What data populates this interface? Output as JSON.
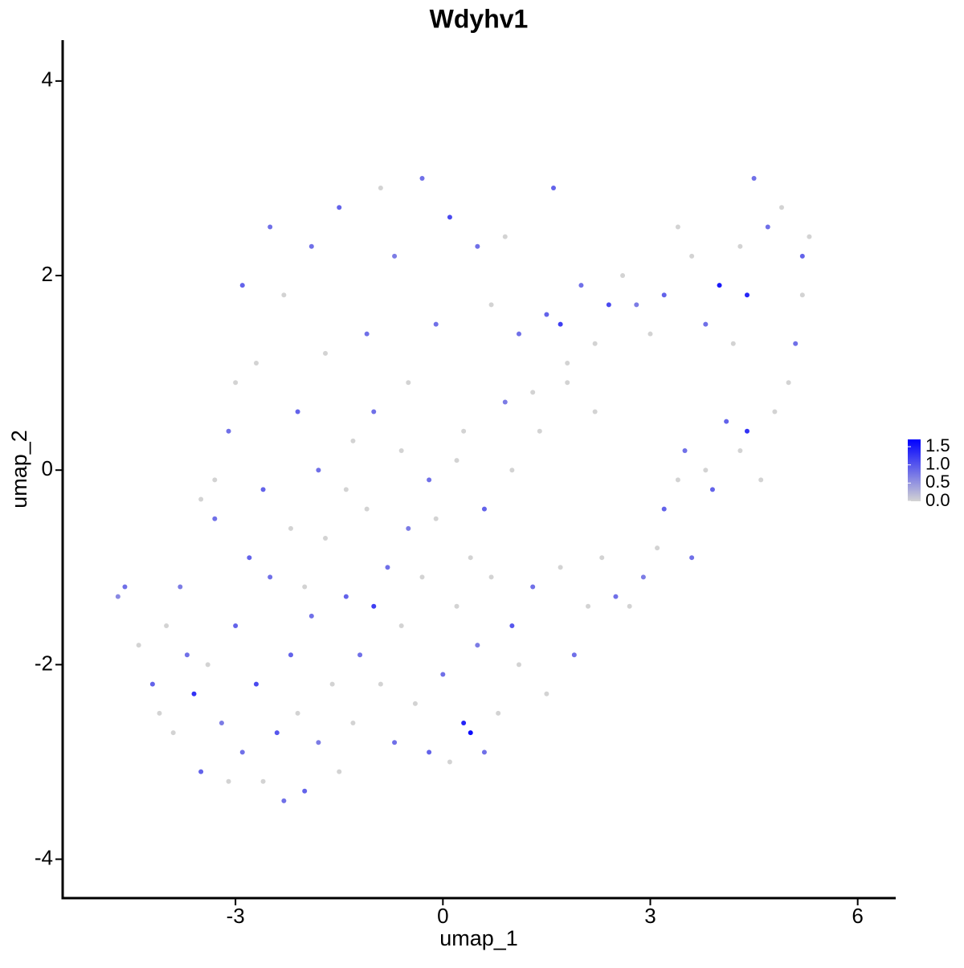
{
  "chart_data": {
    "type": "scatter",
    "title": "Wdyhv1",
    "x_label": "umap_1",
    "y_label": "umap_2",
    "x": [
      -4.7,
      -4.6,
      -4.4,
      -4.2,
      -4.0,
      -3.9,
      -3.8,
      -3.6,
      -3.5,
      -3.4,
      -3.3,
      -3.2,
      -3.1,
      -3.0,
      -2.9,
      -2.8,
      -2.7,
      -2.6,
      -2.5,
      -2.4,
      -2.3,
      -2.2,
      -2.1,
      -2.0,
      -1.9,
      -1.8,
      -1.7,
      -1.6,
      -1.5,
      -1.4,
      -1.3,
      -1.2,
      -1.1,
      -1.0,
      -0.9,
      -0.8,
      -0.7,
      -0.6,
      -0.5,
      -0.4,
      -0.3,
      -0.2,
      -0.1,
      0,
      0.1,
      0.2,
      0.3,
      0.4,
      0.5,
      0.6,
      0.7,
      0.8,
      1.0,
      1.1,
      1.3,
      1.5,
      1.7,
      1.9,
      2.1,
      2.3,
      2.5,
      2.7,
      2.9,
      3.1,
      3.2,
      3.4,
      3.5,
      3.6,
      3.8,
      3.9,
      4.1,
      4.3,
      4.4,
      4.6,
      4.8,
      5.0,
      5.1,
      5.2,
      5.3,
      5.2,
      4.9,
      4.7,
      4.5,
      4.3,
      4.4,
      4.2,
      4.0,
      3.8,
      3.6,
      3.4,
      3.2,
      3.0,
      2.8,
      2.6,
      2.4,
      2.2,
      2.0,
      1.8,
      1.7,
      1.5,
      1.3,
      1.1,
      0.9,
      0.7,
      0.5,
      0.3,
      0.1,
      -0.1,
      -0.3,
      -0.5,
      -0.7,
      -0.9,
      -1.1,
      -1.3,
      -1.5,
      -1.7,
      -1.9,
      -2.1,
      -2.3,
      -2.5,
      -2.7,
      -2.9,
      -3.1,
      -3.3,
      -3.5,
      -3.0,
      -2.6,
      -2.2,
      -1.8,
      -1.4,
      -1.0,
      -0.6,
      -0.2,
      0.2,
      0.6,
      1.0,
      1.4,
      1.8,
      2.2,
      0.4,
      -2.0,
      -3.7,
      -4.1,
      1.6,
      0.9
    ],
    "y": [
      -1.3,
      -1.2,
      -1.8,
      -2.2,
      -1.6,
      -2.7,
      -1.2,
      -2.3,
      -3.1,
      -2.0,
      -0.5,
      -2.6,
      -3.2,
      -1.6,
      -2.9,
      -0.9,
      -2.2,
      -3.2,
      -1.1,
      -2.7,
      -3.4,
      -1.9,
      -2.5,
      -3.3,
      -1.5,
      -2.8,
      -0.7,
      -2.2,
      -3.1,
      -1.3,
      -2.6,
      -1.9,
      -0.4,
      -1.4,
      -2.2,
      -1.0,
      -2.8,
      -1.6,
      -0.6,
      -2.4,
      -1.1,
      -2.9,
      -0.5,
      -2.1,
      -3.0,
      -1.4,
      -2.6,
      -2.7,
      -1.8,
      -2.9,
      -1.1,
      -2.5,
      -1.6,
      -2.0,
      -1.2,
      -2.3,
      -1.0,
      -1.9,
      -1.4,
      -0.9,
      -1.3,
      -1.4,
      -1.1,
      -0.8,
      -0.4,
      -0.1,
      0.2,
      -0.9,
      0,
      -0.2,
      0.5,
      0.2,
      0.4,
      -0.1,
      0.6,
      0.9,
      1.3,
      1.8,
      2.4,
      2.2,
      2.7,
      2.5,
      3.0,
      2.3,
      1.8,
      1.3,
      1.9,
      1.5,
      2.2,
      2.5,
      1.8,
      1.4,
      1.7,
      2.0,
      1.7,
      1.3,
      1.9,
      1.1,
      1.5,
      1.6,
      0.8,
      1.4,
      0.7,
      1.7,
      2.3,
      0.4,
      2.6,
      1.5,
      3.0,
      0.9,
      2.2,
      2.9,
      1.4,
      0.3,
      2.7,
      1.2,
      2.3,
      0.6,
      1.8,
      2.5,
      1.1,
      1.9,
      0.4,
      -0.1,
      -0.3,
      0.9,
      -0.2,
      -0.6,
      0,
      -0.2,
      0.6,
      0.2,
      -0.1,
      0.1,
      -0.4,
      0,
      0.4,
      0.9,
      0.6,
      -0.9,
      -1.2,
      -1.9,
      -2.5,
      2.9,
      2.4
    ],
    "values": [
      0.6,
      0.8,
      0,
      0.9,
      0,
      0,
      0.7,
      1.3,
      0.9,
      0,
      0.8,
      0.7,
      0,
      0.9,
      0.8,
      0.9,
      1.1,
      0,
      0.8,
      1.0,
      0.8,
      0.9,
      0,
      0.9,
      0.8,
      0.7,
      0,
      0,
      0,
      0.9,
      0,
      0.8,
      0,
      1.2,
      0,
      0.8,
      0.8,
      0,
      0.7,
      0,
      0,
      0.9,
      0,
      0.8,
      0,
      0,
      1.4,
      1.6,
      0.7,
      0.8,
      0,
      0,
      1.0,
      0,
      0.8,
      0,
      0,
      0.8,
      0,
      0,
      0.8,
      0,
      0.7,
      0,
      0.9,
      0,
      0.8,
      0.8,
      0,
      0.9,
      0.9,
      0,
      1.3,
      0,
      0,
      0,
      0.8,
      0,
      0,
      0.9,
      0,
      0.8,
      0.8,
      0,
      1.4,
      0,
      1.5,
      0.8,
      0,
      0,
      0.9,
      0,
      0.7,
      0,
      1.1,
      0,
      0.8,
      0,
      1.2,
      0.9,
      0,
      0.8,
      0.7,
      0,
      0.8,
      0,
      1.1,
      0.8,
      0.8,
      0,
      0.7,
      0,
      0.8,
      0,
      0.9,
      0,
      0.8,
      0.9,
      0,
      0.8,
      0,
      0.9,
      0.8,
      0,
      0,
      0,
      0.9,
      0,
      0.8,
      0,
      0.8,
      0,
      0.8,
      0,
      0.9,
      0,
      0,
      0,
      0,
      0,
      0,
      0.8,
      0,
      0.9,
      0
    ],
    "xlim": [
      -5.5,
      6.55
    ],
    "ylim": [
      -4.4,
      4.42
    ],
    "xticks": [
      -3,
      0,
      3,
      6
    ],
    "yticks": [
      -4,
      -2,
      0,
      2,
      4
    ],
    "color_scale": {
      "colors": [
        "#d3d3d3",
        "#0000ff"
      ],
      "limits": [
        0,
        1.7
      ],
      "ticks": [
        {
          "value": 0,
          "label": "0.0"
        },
        0.5,
        {
          "value": 1,
          "label": "1.0"
        },
        1.5
      ]
    }
  }
}
